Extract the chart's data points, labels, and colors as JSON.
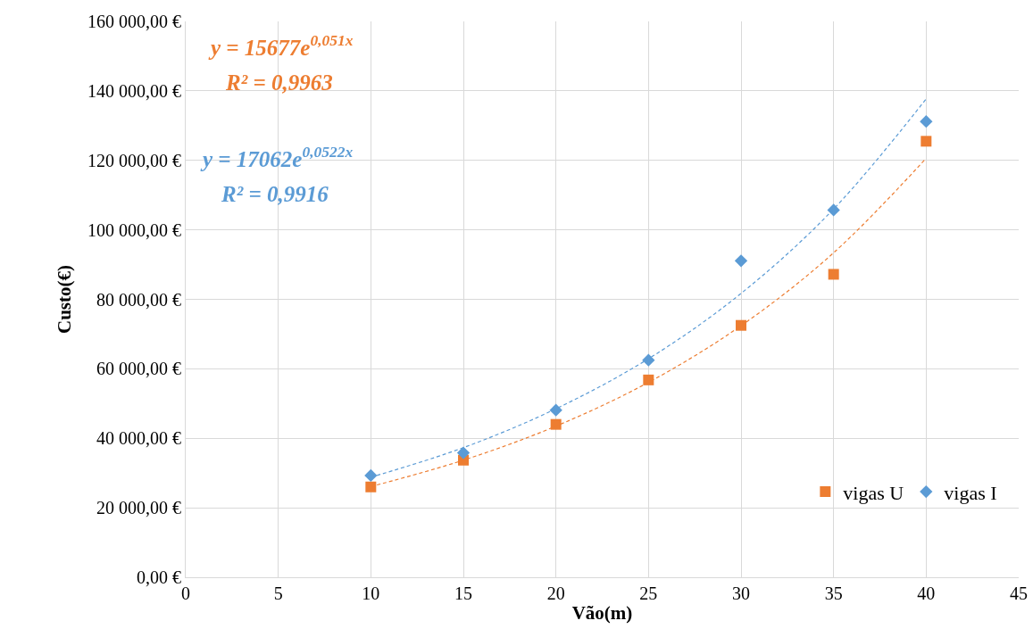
{
  "chart_data": {
    "type": "scatter",
    "xlabel": "Vão(m)",
    "ylabel": "Custo(€)",
    "xlim": [
      0,
      45
    ],
    "xticks": [
      0,
      5,
      10,
      15,
      20,
      25,
      30,
      35,
      40,
      45
    ],
    "ylim": [
      0,
      160000
    ],
    "yticks": [
      {
        "value": 0,
        "label": "0,00 €"
      },
      {
        "value": 20000,
        "label": "20 000,00 €"
      },
      {
        "value": 40000,
        "label": "40 000,00 €"
      },
      {
        "value": 60000,
        "label": "60 000,00 €"
      },
      {
        "value": 80000,
        "label": "80 000,00 €"
      },
      {
        "value": 100000,
        "label": "100 000,00 €"
      },
      {
        "value": 120000,
        "label": "120 000,00 €"
      },
      {
        "value": 140000,
        "label": "140 000,00 €"
      },
      {
        "value": 160000,
        "label": "160 000,00 €"
      }
    ],
    "grid": true,
    "legend": "bottom right",
    "series": [
      {
        "name": "vigas U",
        "color": "#ed7d31",
        "marker": "square",
        "x": [
          10,
          15,
          20,
          25,
          30,
          35,
          40
        ],
        "values": [
          26000,
          33700,
          44000,
          56800,
          72500,
          87200,
          125500
        ]
      },
      {
        "name": "vigas I",
        "color": "#5b9bd5",
        "marker": "diamond",
        "x": [
          10,
          15,
          20,
          25,
          30,
          35,
          40
        ],
        "values": [
          29300,
          35800,
          48100,
          62500,
          91100,
          105700,
          131200
        ]
      },
      {
        "type": "line",
        "color": "#ed7d31",
        "marker": "none",
        "line_style": "dashed",
        "x": [
          10,
          15,
          20,
          25,
          30,
          35,
          40
        ],
        "values": [
          26100,
          33700,
          43500,
          56100,
          72400,
          93400,
          120600
        ]
      },
      {
        "type": "line",
        "color": "#5b9bd5",
        "marker": "none",
        "line_style": "dashed",
        "x": [
          10,
          15,
          20,
          25,
          30,
          35,
          40
        ],
        "values": [
          28800,
          37300,
          48500,
          62900,
          81700,
          106000,
          137700
        ]
      }
    ],
    "annotations": [
      "y = 15677e$^{0,051x}$",
      "R² = 0,9963",
      "y = 17062e$^{0,0522x}$",
      "R² = 0,9916"
    ]
  }
}
